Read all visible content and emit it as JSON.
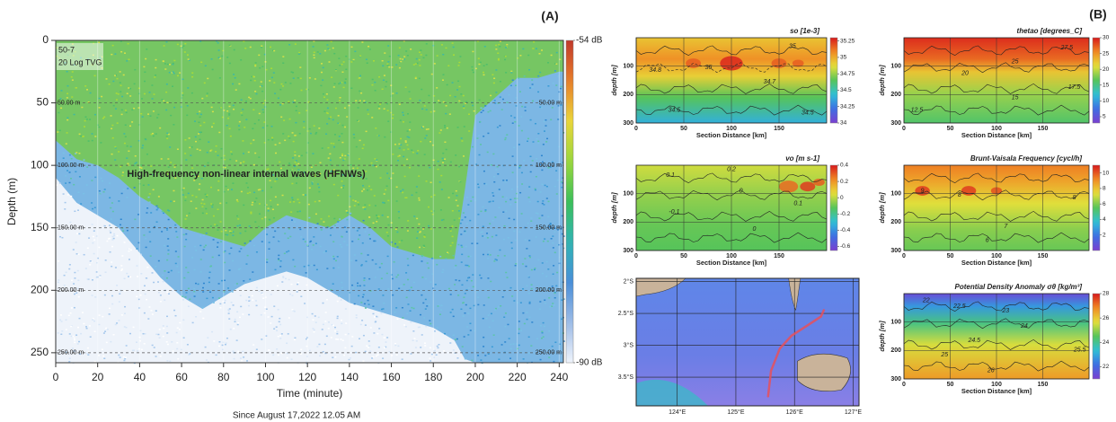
{
  "chart_data": [
    {
      "type": "echogram",
      "panel_label": "(A)",
      "xlabel": "Time (minute)",
      "ylabel": "Depth (m)",
      "subtitle": "Since August 17,2022 12.05 AM",
      "xlim": [
        0,
        242
      ],
      "xticks": [
        0,
        20,
        40,
        60,
        80,
        100,
        120,
        140,
        160,
        180,
        200,
        220,
        240
      ],
      "ylim": [
        0,
        258
      ],
      "yticks": [
        0,
        50,
        100,
        150,
        200,
        250
      ],
      "y_inverted": true,
      "depth_lines": [
        {
          "value": 50,
          "label": "50.00 m"
        },
        {
          "value": 100,
          "label": "100.00 m"
        },
        {
          "value": 150,
          "label": "150.00 m"
        },
        {
          "value": 200,
          "label": "200.00 m"
        },
        {
          "value": 250,
          "label": "250.00 m"
        }
      ],
      "annotations": [
        "50-7",
        "20 Log TVG",
        "High-frequency non-linear internal waves (HFNWs)"
      ],
      "colorbar": {
        "lim": [
          -90,
          -54
        ],
        "ticks": [
          {
            "value": -54,
            "label": "-54 dB"
          },
          {
            "value": -90,
            "label": "-90 dB"
          }
        ],
        "colormap": [
          "#eef3fb",
          "#9dbbe6",
          "#4a8fd8",
          "#2fb4b4",
          "#3cbf5a",
          "#9bd83c",
          "#e9d53a",
          "#e87d2a",
          "#c0392b"
        ]
      }
    },
    {
      "type": "section",
      "panel_label": "(B)",
      "title": "so [1e-3]",
      "xlabel": "Section Distance [km]",
      "ylabel": "depth [m]",
      "xlim": [
        0,
        200
      ],
      "xticks": [
        0,
        50,
        100,
        150
      ],
      "ylim": [
        0,
        300
      ],
      "yticks": [
        100,
        200,
        300
      ],
      "colorbar": {
        "lim": [
          34,
          35.3
        ],
        "ticks": [
          35.25,
          35,
          34.75,
          34.5,
          34.25,
          34
        ]
      },
      "contour_labels": [
        35,
        35,
        34.8,
        34.7,
        34.5,
        34.5
      ]
    },
    {
      "type": "section",
      "title": "thetao [degrees_C]",
      "xlabel": "Section Distance [km]",
      "ylabel": "depth [m]",
      "xlim": [
        0,
        200
      ],
      "xticks": [
        0,
        50,
        100,
        150
      ],
      "ylim": [
        0,
        300
      ],
      "yticks": [
        100,
        200,
        300
      ],
      "colorbar": {
        "lim": [
          3,
          30
        ],
        "ticks": [
          30,
          25,
          20,
          15,
          10,
          5
        ]
      },
      "contour_labels": [
        27.5,
        25,
        20,
        17.5,
        15,
        12.5
      ]
    },
    {
      "type": "section",
      "title": "vo [m s-1]",
      "xlabel": "Section Distance [km]",
      "ylabel": "depth [m]",
      "xlim": [
        0,
        200
      ],
      "xticks": [
        0,
        50,
        100,
        150
      ],
      "ylim": [
        0,
        300
      ],
      "yticks": [
        100,
        200,
        300
      ],
      "colorbar": {
        "lim": [
          -0.65,
          0.4
        ],
        "ticks": [
          0.4,
          0.2,
          0,
          -0.2,
          -0.4,
          -0.6
        ]
      },
      "contour_labels": [
        0.1,
        0.2,
        0,
        -0.1,
        0.1,
        0
      ]
    },
    {
      "type": "section",
      "title": "Brunt-Vaisala Frequency [cycl/h]",
      "xlabel": "Section Distance [km]",
      "ylabel": "depth [m]",
      "xlim": [
        0,
        200
      ],
      "xticks": [
        0,
        50,
        100,
        150
      ],
      "ylim": [
        0,
        300
      ],
      "yticks": [
        100,
        200,
        300
      ],
      "colorbar": {
        "lim": [
          0,
          11
        ],
        "ticks": [
          10,
          8,
          6,
          4,
          2
        ]
      },
      "contour_labels": [
        9,
        8,
        8,
        7,
        6
      ]
    },
    {
      "type": "section",
      "title": "Potential Density Anomaly σθ [kg/m³]",
      "xlabel": "Section Distance [km]",
      "ylabel": "depth [m]",
      "xlim": [
        0,
        200
      ],
      "xticks": [
        0,
        50,
        100,
        150
      ],
      "ylim": [
        0,
        300
      ],
      "yticks": [
        100,
        200,
        300
      ],
      "colorbar": {
        "lim": [
          21,
          28
        ],
        "ticks": [
          28,
          26,
          24,
          22
        ]
      },
      "contour_labels": [
        22,
        22.5,
        23,
        24,
        24.5,
        25,
        25.5,
        26
      ]
    },
    {
      "type": "map",
      "xlim": [
        123.3,
        127.1
      ],
      "ylim": [
        -3.95,
        -1.95
      ],
      "xticks": [
        {
          "value": 124,
          "label": "124°E"
        },
        {
          "value": 125,
          "label": "125°E"
        },
        {
          "value": 126,
          "label": "126°E"
        },
        {
          "value": 127,
          "label": "127°E"
        }
      ],
      "yticks": [
        {
          "value": -2,
          "label": "2°S"
        },
        {
          "value": -2.5,
          "label": "2.5°S"
        },
        {
          "value": -3,
          "label": "3°S"
        },
        {
          "value": -3.5,
          "label": "3.5°S"
        }
      ],
      "track": {
        "color": "#e8505b",
        "x": [
          125.55,
          125.6,
          125.75,
          125.95,
          126.2,
          126.45,
          126.5
        ],
        "y": [
          -3.8,
          -3.4,
          -3.05,
          -2.85,
          -2.7,
          -2.55,
          -2.45
        ]
      }
    }
  ],
  "section_colormap": [
    "#7b3fd0",
    "#3d6fe3",
    "#2fc0d8",
    "#56c45a",
    "#e6e03a",
    "#f08a24",
    "#d7191c"
  ]
}
